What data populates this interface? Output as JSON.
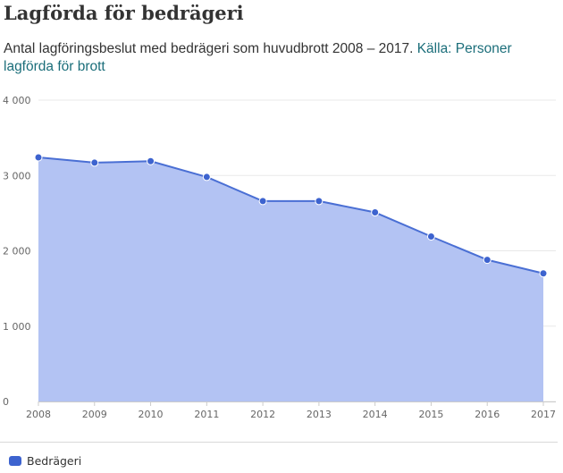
{
  "title": "Lagförda för bedrägeri",
  "subtitle_text": "Antal lagföringsbeslut med bedrägeri som huvudbrott 2008 – 2017. ",
  "source_link": "Källa: Personer lagförda för brott",
  "colors": {
    "series_line": "#4a6fd4",
    "series_fill": "#b3c3f3",
    "series_point": "#3d63cf",
    "legend_swatch": "#3d63cf",
    "source_link": "#1b6e7a",
    "grid": "#e8e8e8"
  },
  "chart_data": {
    "type": "area",
    "title": "Lagförda för bedrägeri",
    "x": [
      "2008",
      "2009",
      "2010",
      "2011",
      "2012",
      "2013",
      "2014",
      "2015",
      "2016",
      "2017"
    ],
    "series": [
      {
        "name": "Bedrägeri",
        "values": [
          3240,
          3170,
          3190,
          2980,
          2660,
          2660,
          2510,
          2190,
          1880,
          1700
        ]
      }
    ],
    "y_ticks": [
      "0",
      "1 000",
      "2 000",
      "3 000",
      "4 000"
    ],
    "ylim": [
      0,
      4000
    ],
    "xlabel": "",
    "ylabel": "",
    "grid": true,
    "legend_placement": "bottom-left"
  },
  "legend": {
    "label": "Bedrägeri"
  }
}
